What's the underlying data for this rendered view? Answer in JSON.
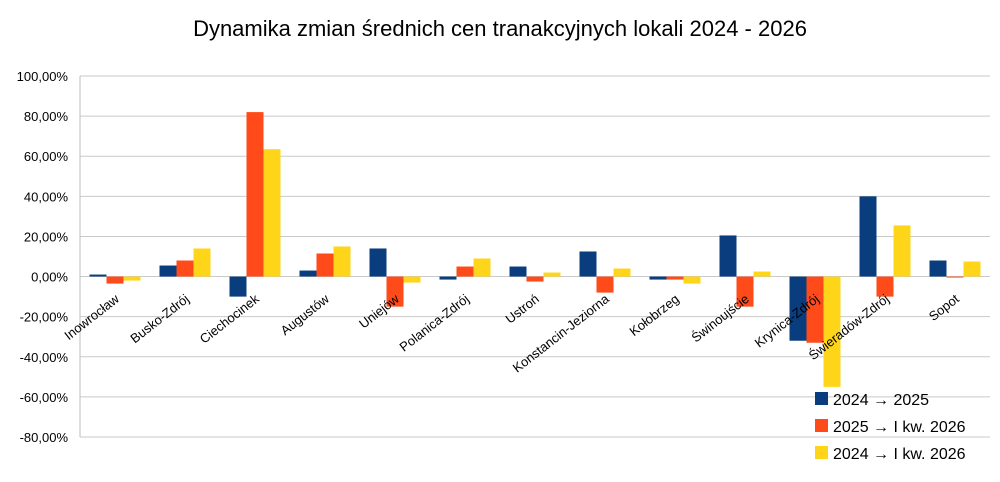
{
  "chart_data": {
    "type": "bar",
    "title": "Dynamika zmian średnich cen tranakcyjnych lokali 2024 - 2026",
    "xlabel": "",
    "ylabel": "",
    "ylim": [
      -80,
      100
    ],
    "yticks": [
      100,
      80,
      60,
      40,
      20,
      0,
      -20,
      -40,
      -60,
      -80
    ],
    "ytick_labels": [
      "100,00%",
      "80,00%",
      "60,00%",
      "40,00%",
      "20,00%",
      "0,00%",
      "-20,00%",
      "-40,00%",
      "-60,00%",
      "-80,00%"
    ],
    "grid": true,
    "legend_position": "bottom-right",
    "categories": [
      "Inowrocław",
      "Busko-Zdrój",
      "Ciechocinek",
      "Augustów",
      "Uniejów",
      "Polanica-Zdrój",
      "Ustroń",
      "Konstancin-Jeziorna",
      "Kołobrzeg",
      "Świnoujście",
      "Krynica-Zdrój",
      "Świeradów-Zdrój",
      "Sopot"
    ],
    "series": [
      {
        "name": "2024 → 2025",
        "color": "#0a3d7e",
        "values": [
          1,
          5.5,
          -10,
          3,
          14,
          -1.5,
          5,
          12.5,
          -1.5,
          20.5,
          -32,
          40,
          8
        ]
      },
      {
        "name": "2025 → I kw. 2026",
        "color": "#ff4a1a",
        "values": [
          -3.5,
          8,
          82,
          11.5,
          -15,
          5,
          -2.5,
          -8,
          -1.5,
          -15,
          -33,
          -10,
          -0.5
        ]
      },
      {
        "name": "2024 → I kw. 2026",
        "color": "#ffd51a",
        "values": [
          -2,
          14,
          63.5,
          15,
          -3,
          9,
          2,
          4,
          -3.5,
          2.5,
          -55,
          25.5,
          7.5
        ]
      }
    ]
  }
}
